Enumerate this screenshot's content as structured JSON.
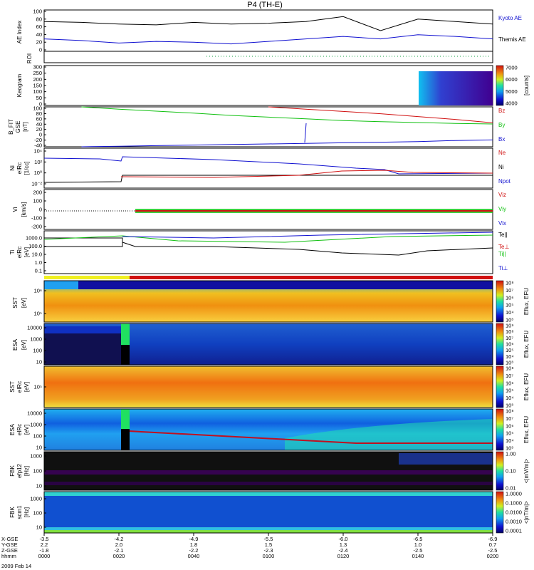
{
  "title": "P4 (TH-E)",
  "colors": {
    "black": "#000000",
    "blue": "#1010d0",
    "green": "#10c010",
    "red": "#d01010"
  },
  "time_axis": {
    "ticks": [
      "0000",
      "0020",
      "0040",
      "0100",
      "0120",
      "0140",
      "0200"
    ],
    "rows": [
      {
        "label": "X-GSE",
        "values": [
          "-3.5",
          "-4.2",
          "-4.9",
          "-5.5",
          "-6.0",
          "-6.5",
          "-6.9"
        ]
      },
      {
        "label": "Y-GSE",
        "values": [
          "2.2",
          "2.0",
          "1.8",
          "1.5",
          "1.3",
          "1.0",
          "0.7"
        ]
      },
      {
        "label": "Z-GSE",
        "values": [
          "-1.8",
          "-2.1",
          "-2.2",
          "-2.3",
          "-2.4",
          "-2.5",
          "-2.5"
        ]
      },
      {
        "label": "hhmm",
        "values": [
          "0000",
          "0020",
          "0040",
          "0100",
          "0120",
          "0140",
          "0200"
        ]
      }
    ],
    "date": "2009 Feb 14"
  },
  "panels": {
    "ae": {
      "ylabel": "AE Index",
      "yticks": [
        "100",
        "80",
        "60",
        "40",
        "20",
        "0"
      ],
      "legend": [
        "Kyoto AE",
        "Themis AE"
      ]
    },
    "roi": {
      "ylabel": "ROI"
    },
    "keogram": {
      "ylabel": "Keogram",
      "yticks": [
        "300",
        "250",
        "200",
        "150",
        "100",
        "50",
        "0"
      ],
      "cbar_ticks": [
        "7000",
        "6000",
        "5000",
        "4000"
      ],
      "cbar_label": "[counts]"
    },
    "bfit": {
      "ylabel": "B_FIT",
      "ylabel2": "GSE",
      "unit": "[nT]",
      "yticks": [
        "100",
        "80",
        "60",
        "40",
        "20",
        "0",
        "-20",
        "-40"
      ],
      "legend": [
        "Bz",
        "By",
        "Bx"
      ]
    },
    "ni": {
      "ylabel": "Ni",
      "ylabel2": "eIRc",
      "unit": "[1/cc]",
      "yticks": [
        "10⁴",
        "10²",
        "10⁰",
        "10⁻²"
      ],
      "legend": [
        "Ne",
        "Ni",
        "Npot"
      ]
    },
    "vi": {
      "ylabel": "Vi",
      "unit": "[km/s]",
      "yticks": [
        "200",
        "100",
        "0",
        "-100",
        "-200"
      ],
      "legend": [
        "Viz",
        "Viy",
        "Vix"
      ]
    },
    "ti": {
      "ylabel": "Ti",
      "ylabel2": "eIRc",
      "unit": "[eV]",
      "yticks": [
        "1000.0",
        "100.0",
        "10.0",
        "1.0",
        "0.1"
      ],
      "legend": [
        "Te||",
        "Te⊥",
        "Ti||",
        "Ti⊥"
      ]
    },
    "sst_e": {
      "ylabel": "SST",
      "unit": "[eV]",
      "yticks": [
        "10⁶",
        "10⁵"
      ],
      "cbar_ticks": [
        "10⁸",
        "10⁷",
        "10⁶",
        "10⁵",
        "10⁴",
        "10³"
      ],
      "cbar_label": "Eflux, EFU"
    },
    "esa_e": {
      "ylabel": "ESA",
      "unit": "[eV]",
      "yticks": [
        "10000",
        "1000",
        "100",
        "10"
      ],
      "cbar_ticks": [
        "10⁹",
        "10⁸",
        "10⁷",
        "10⁶",
        "10⁵",
        "10⁴",
        "10³"
      ],
      "cbar_label": "Eflux, EFU"
    },
    "sst_i": {
      "ylabel": "SST",
      "ylabel2": "eIRc",
      "unit": "[eV]",
      "yticks": [
        "10⁵"
      ],
      "cbar_ticks": [
        "10⁸",
        "10⁷",
        "10⁶",
        "10⁵",
        "10⁴",
        "10³"
      ],
      "cbar_label": "Eflux, EFU"
    },
    "esa_i": {
      "ylabel": "ESA",
      "ylabel2": "eIRc",
      "unit": "[eV]",
      "yticks": [
        "10000",
        "1000",
        "100",
        "10"
      ],
      "cbar_ticks": [
        "10⁸",
        "10⁷",
        "10⁶",
        "10⁵",
        "10⁴",
        "10³"
      ],
      "cbar_label": "Eflux, EFU"
    },
    "fbk1": {
      "ylabel": "FBK",
      "ylabel2": "efp12",
      "unit": "[Hz]",
      "yticks": [
        "1000",
        "100",
        "10"
      ],
      "cbar_ticks": [
        "1.00",
        "0.10",
        "0.01"
      ],
      "cbar_label": "<|mV/m|>"
    },
    "fbk2": {
      "ylabel": "FBK",
      "ylabel2": "scm1",
      "unit": "[Hz]",
      "yticks": [
        "1000",
        "100",
        "10"
      ],
      "cbar_ticks": [
        "1.0000",
        "0.1000",
        "0.0100",
        "0.0010",
        "0.0001"
      ],
      "cbar_label": "<|nT/m|>"
    }
  },
  "chart_data": {
    "type": "line",
    "x_label": "hhmm",
    "x": [
      "0000",
      "0010",
      "0020",
      "0030",
      "0040",
      "0050",
      "0100",
      "0110",
      "0120",
      "0130",
      "0140",
      "0150",
      "0200"
    ],
    "series": [
      {
        "name": "Kyoto AE",
        "panel": "ae",
        "values": [
          72,
          70,
          66,
          64,
          70,
          66,
          68,
          72,
          84,
          50,
          78,
          72,
          66
        ]
      },
      {
        "name": "Themis AE",
        "panel": "ae",
        "values": [
          30,
          26,
          20,
          24,
          22,
          18,
          24,
          30,
          36,
          30,
          40,
          36,
          30
        ]
      },
      {
        "name": "Bz",
        "panel": "bfit",
        "values": [
          null,
          null,
          null,
          null,
          null,
          null,
          100,
          92,
          84,
          76,
          66,
          56,
          44
        ]
      },
      {
        "name": "By",
        "panel": "bfit",
        "values": [
          null,
          100,
          92,
          85,
          78,
          70,
          64,
          58,
          52,
          48,
          45,
          42,
          40
        ]
      },
      {
        "name": "Bx",
        "panel": "bfit",
        "values": [
          null,
          -40,
          -38,
          -36,
          -34,
          -32,
          -30,
          -28,
          -26,
          -24,
          -22,
          -18,
          -16
        ]
      }
    ]
  }
}
